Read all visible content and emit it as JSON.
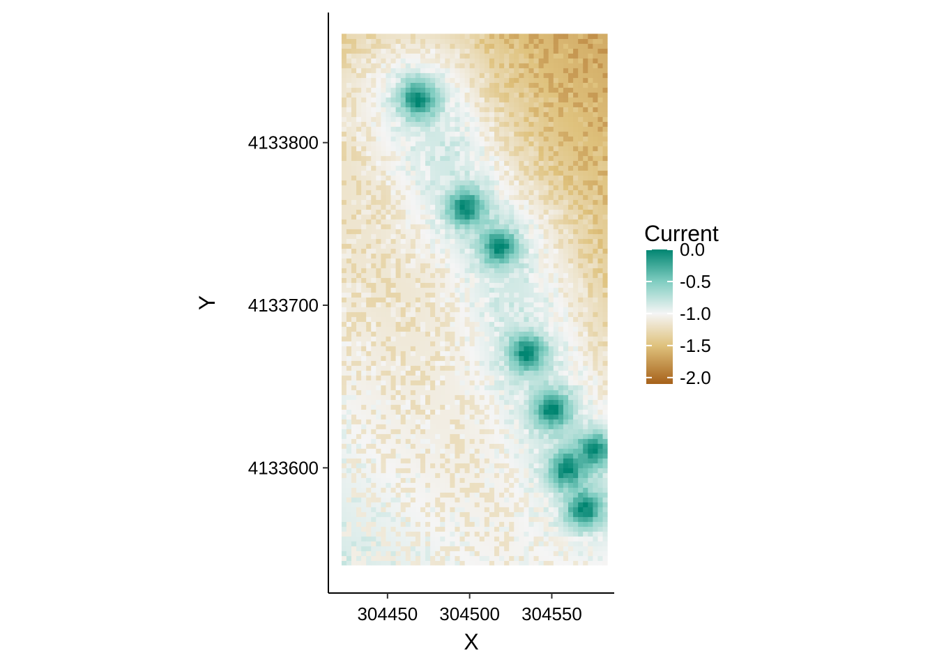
{
  "chart_data": {
    "type": "heatmap",
    "title": "",
    "xlabel": "X",
    "ylabel": "Y",
    "xlim": [
      304414,
      304588
    ],
    "ylim": [
      4133523,
      4133880
    ],
    "raster_extent": {
      "x": [
        304422,
        304584
      ],
      "y": [
        4133540,
        4133867
      ]
    },
    "x_ticks": [
      304450,
      304500,
      304550
    ],
    "x_tick_labels": [
      "304450",
      "304500",
      "304550"
    ],
    "y_ticks": [
      4133600,
      4133700,
      4133800
    ],
    "y_tick_labels": [
      "4133600",
      "4133700",
      "4133800"
    ],
    "value_range": [
      -2.1,
      0.0
    ],
    "background_trend": {
      "x_gradient_per_m": -0.0018,
      "y_gradient_per_m": -0.0015,
      "reference_x": 304560,
      "reference_y": 4133700,
      "reference_value": -1.35
    },
    "corridor": {
      "path": [
        {
          "x": 304469,
          "y": 4133827
        },
        {
          "x": 304498,
          "y": 4133760
        },
        {
          "x": 304518,
          "y": 4133736
        },
        {
          "x": 304535,
          "y": 4133671
        },
        {
          "x": 304550,
          "y": 4133636
        },
        {
          "x": 304565,
          "y": 4133600
        },
        {
          "x": 304575,
          "y": 4133578
        }
      ],
      "value": -0.85,
      "width_m": 55
    },
    "hotspots": [
      {
        "x": 304469,
        "y": 4133827,
        "value": 0.0
      },
      {
        "x": 304498,
        "y": 4133760,
        "value": 0.0
      },
      {
        "x": 304518,
        "y": 4133736,
        "value": 0.0
      },
      {
        "x": 304535,
        "y": 4133671,
        "value": 0.0
      },
      {
        "x": 304550,
        "y": 4133636,
        "value": 0.0
      },
      {
        "x": 304576,
        "y": 4133611,
        "value": 0.0
      },
      {
        "x": 304559,
        "y": 4133599,
        "value": 0.0
      },
      {
        "x": 304570,
        "y": 4133575,
        "value": 0.0
      }
    ],
    "colorscale": [
      {
        "value": -2.1,
        "color": "#a6611a"
      },
      {
        "value": -1.5,
        "color": "#dfc27d"
      },
      {
        "value": -1.0,
        "color": "#f5f5f5"
      },
      {
        "value": -0.5,
        "color": "#80cdc1"
      },
      {
        "value": 0.0,
        "color": "#018571"
      }
    ],
    "legend": {
      "title": "Current",
      "placement": "right",
      "breaks": [
        0.0,
        -0.5,
        -1.0,
        -1.5,
        -2.0
      ],
      "labels": [
        "0.0",
        "-0.5",
        "-1.0",
        "-1.5",
        "-2.0"
      ]
    },
    "grid": false
  }
}
